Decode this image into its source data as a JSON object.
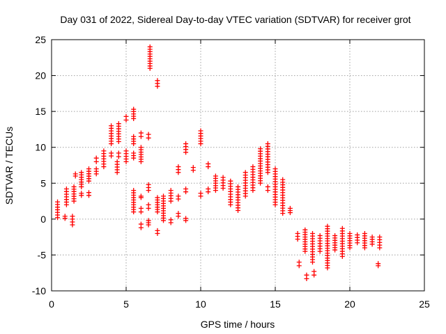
{
  "chart_data": {
    "type": "scatter",
    "title": "Day 031 of 2022, Sidereal Day-to-day VTEC variation (SDTVAR) for receiver grot",
    "xlabel": "GPS time / hours",
    "ylabel": "SDTVAR / TECUs",
    "xlim": [
      0,
      25
    ],
    "ylim": [
      -10,
      25
    ],
    "x_ticks": [
      0,
      5,
      10,
      15,
      20,
      25
    ],
    "y_ticks": [
      -10,
      -5,
      0,
      5,
      10,
      15,
      20,
      25
    ],
    "x_tick_labels": [
      "0",
      "5",
      "10",
      "15",
      "20",
      "25"
    ],
    "y_tick_labels": [
      "-10",
      "-5",
      "0",
      "5",
      "10",
      "15",
      "20",
      "25"
    ],
    "grid": true,
    "marker": "+",
    "color": "#ff0000",
    "series": [
      {
        "name": "SDTVAR",
        "clusters": [
          {
            "x": 0.4,
            "y": [
              0.2,
              2.4
            ]
          },
          {
            "x": 0.9,
            "y": [
              0.1,
              0.4
            ]
          },
          {
            "x": 1.0,
            "y": [
              2.0,
              4.2
            ]
          },
          {
            "x": 1.4,
            "y": [
              -0.8,
              0.4
            ]
          },
          {
            "x": 1.5,
            "y": [
              2.5,
              4.5
            ]
          },
          {
            "x": 1.6,
            "y": [
              6.0,
              6.3
            ]
          },
          {
            "x": 2.0,
            "y": [
              3.3,
              3.6
            ]
          },
          {
            "x": 2.0,
            "y": [
              4.5,
              6.5
            ]
          },
          {
            "x": 2.5,
            "y": [
              3.3,
              3.7
            ]
          },
          {
            "x": 2.5,
            "y": [
              5.3,
              7.0
            ]
          },
          {
            "x": 3.0,
            "y": [
              6.3,
              7.0
            ]
          },
          {
            "x": 3.0,
            "y": [
              8.0,
              8.5
            ]
          },
          {
            "x": 3.5,
            "y": [
              7.3,
              9.5
            ]
          },
          {
            "x": 4.0,
            "y": [
              8.8,
              9.2
            ]
          },
          {
            "x": 4.0,
            "y": [
              10.5,
              13.0
            ]
          },
          {
            "x": 4.4,
            "y": [
              6.5,
              8.0
            ]
          },
          {
            "x": 4.5,
            "y": [
              8.7,
              9.2
            ]
          },
          {
            "x": 4.5,
            "y": [
              10.8,
              13.3
            ]
          },
          {
            "x": 5.0,
            "y": [
              8.0,
              9.5
            ]
          },
          {
            "x": 5.0,
            "y": [
              13.8,
              14.3
            ]
          },
          {
            "x": 5.5,
            "y": [
              1.0,
              4.0
            ]
          },
          {
            "x": 5.5,
            "y": [
              8.5,
              9.2
            ]
          },
          {
            "x": 5.5,
            "y": [
              10.5,
              11.5
            ]
          },
          {
            "x": 5.5,
            "y": [
              14.0,
              15.3
            ]
          },
          {
            "x": 6.0,
            "y": [
              -1.2,
              -0.7
            ]
          },
          {
            "x": 6.0,
            "y": [
              1.0,
              1.5
            ]
          },
          {
            "x": 6.0,
            "y": [
              3.0,
              3.2
            ]
          },
          {
            "x": 6.0,
            "y": [
              8.0,
              10.0
            ]
          },
          {
            "x": 6.0,
            "y": [
              11.5,
              12.0
            ]
          },
          {
            "x": 6.5,
            "y": [
              -0.8,
              -0.2
            ]
          },
          {
            "x": 6.5,
            "y": [
              1.5,
              2.0
            ]
          },
          {
            "x": 6.5,
            "y": [
              4.0,
              4.8
            ]
          },
          {
            "x": 6.5,
            "y": [
              11.3,
              11.8
            ]
          },
          {
            "x": 6.6,
            "y": [
              21.0,
              24.0
            ]
          },
          {
            "x": 7.1,
            "y": [
              -2.0,
              -1.6
            ]
          },
          {
            "x": 7.1,
            "y": [
              1.0,
              3.0
            ]
          },
          {
            "x": 7.1,
            "y": [
              18.5,
              19.3
            ]
          },
          {
            "x": 7.5,
            "y": [
              -0.2,
              3.2
            ]
          },
          {
            "x": 8.0,
            "y": [
              -0.5,
              -0.1
            ]
          },
          {
            "x": 8.0,
            "y": [
              2.5,
              4.0
            ]
          },
          {
            "x": 8.5,
            "y": [
              0.4,
              0.8
            ]
          },
          {
            "x": 8.5,
            "y": [
              2.8,
              3.2
            ]
          },
          {
            "x": 8.5,
            "y": [
              6.5,
              7.3
            ]
          },
          {
            "x": 9.0,
            "y": [
              -0.2,
              0.1
            ]
          },
          {
            "x": 9.0,
            "y": [
              3.8,
              4.2
            ]
          },
          {
            "x": 9.0,
            "y": [
              9.3,
              10.5
            ]
          },
          {
            "x": 9.5,
            "y": [
              6.8,
              7.2
            ]
          },
          {
            "x": 10.0,
            "y": [
              3.2,
              3.6
            ]
          },
          {
            "x": 10.0,
            "y": [
              10.5,
              12.3
            ]
          },
          {
            "x": 10.5,
            "y": [
              3.8,
              4.2
            ]
          },
          {
            "x": 10.5,
            "y": [
              7.3,
              7.7
            ]
          },
          {
            "x": 11.0,
            "y": [
              4.0,
              6.0
            ]
          },
          {
            "x": 11.5,
            "y": [
              4.3,
              5.8
            ]
          },
          {
            "x": 12.0,
            "y": [
              2.0,
              5.3
            ]
          },
          {
            "x": 12.5,
            "y": [
              1.2,
              4.5
            ]
          },
          {
            "x": 13.0,
            "y": [
              3.2,
              6.5
            ]
          },
          {
            "x": 13.5,
            "y": [
              4.0,
              7.3
            ]
          },
          {
            "x": 14.0,
            "y": [
              5.0,
              9.8
            ]
          },
          {
            "x": 14.5,
            "y": [
              4.0,
              4.5
            ]
          },
          {
            "x": 14.5,
            "y": [
              6.5,
              10.5
            ]
          },
          {
            "x": 15.0,
            "y": [
              2.0,
              7.0
            ]
          },
          {
            "x": 15.5,
            "y": [
              0.8,
              5.5
            ]
          },
          {
            "x": 16.0,
            "y": [
              0.9,
              1.5
            ]
          },
          {
            "x": 16.5,
            "y": [
              -2.8,
              -2.0
            ]
          },
          {
            "x": 16.6,
            "y": [
              -6.5,
              -6.0
            ]
          },
          {
            "x": 17.0,
            "y": [
              -4.5,
              -1.5
            ]
          },
          {
            "x": 17.1,
            "y": [
              -8.3,
              -7.8
            ]
          },
          {
            "x": 17.5,
            "y": [
              -6.0,
              -2.0
            ]
          },
          {
            "x": 17.6,
            "y": [
              -7.8,
              -7.3
            ]
          },
          {
            "x": 18.0,
            "y": [
              -4.5,
              -2.3
            ]
          },
          {
            "x": 18.5,
            "y": [
              -6.8,
              -1.0
            ]
          },
          {
            "x": 19.0,
            "y": [
              -4.3,
              -2.3
            ]
          },
          {
            "x": 19.5,
            "y": [
              -5.2,
              -1.3
            ]
          },
          {
            "x": 20.0,
            "y": [
              -4.0,
              -2.0
            ]
          },
          {
            "x": 20.5,
            "y": [
              -3.3,
              -2.2
            ]
          },
          {
            "x": 21.0,
            "y": [
              -4.0,
              -2.0
            ]
          },
          {
            "x": 21.5,
            "y": [
              -3.5,
              -2.5
            ]
          },
          {
            "x": 21.9,
            "y": [
              -6.5,
              -6.2
            ]
          },
          {
            "x": 22.0,
            "y": [
              -4.0,
              -2.5
            ]
          }
        ]
      }
    ]
  }
}
